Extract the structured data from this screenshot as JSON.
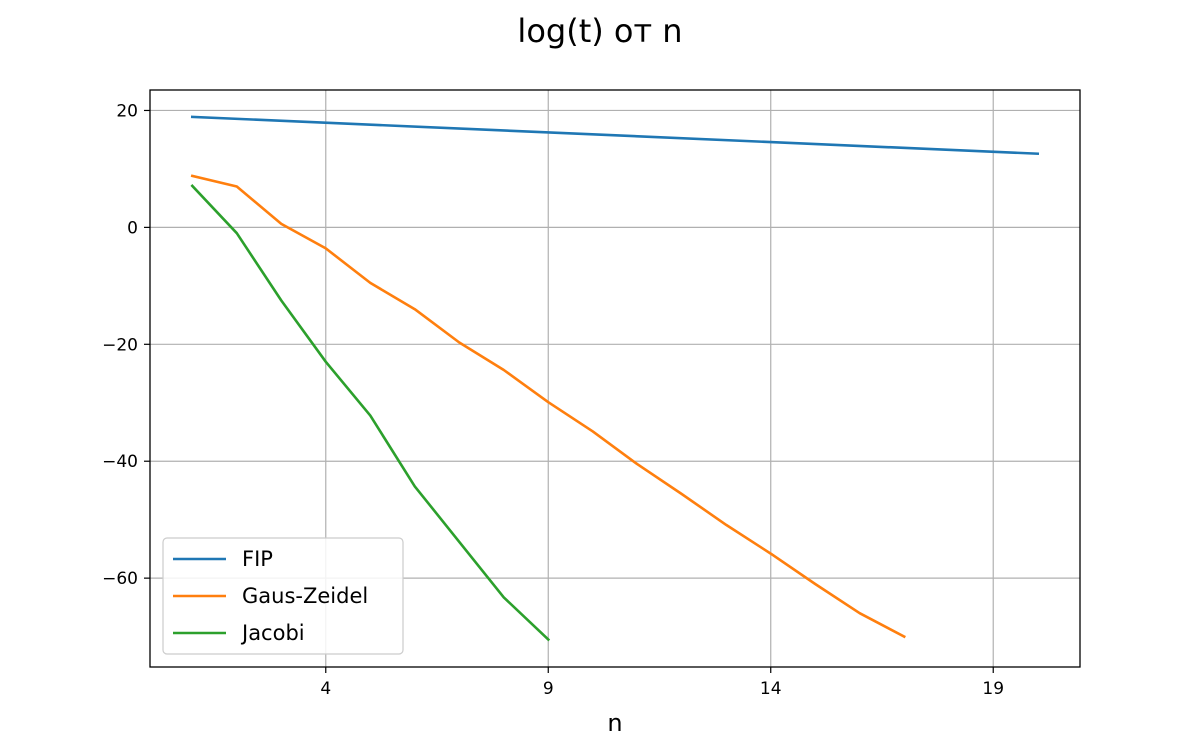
{
  "chart_data": {
    "type": "line",
    "title": "log(t) от n",
    "xlabel": "n",
    "ylabel": "",
    "xlim": [
      0.05,
      20.95
    ],
    "ylim": [
      -75.2,
      23.5
    ],
    "xticks": [
      4,
      9,
      14,
      19
    ],
    "yticks": [
      20,
      0,
      -20,
      -40,
      -60
    ],
    "grid": true,
    "legend_position": "lower-left",
    "series": [
      {
        "name": "FIP",
        "color": "#1f77b4",
        "x": [
          1,
          20
        ],
        "y": [
          18.9,
          12.6
        ]
      },
      {
        "name": "Gaus-Zeidel",
        "color": "#ff7f0e",
        "x": [
          1,
          2,
          3,
          4,
          5,
          6,
          7,
          8,
          9,
          10,
          11,
          12,
          13,
          14,
          15,
          16,
          17
        ],
        "y": [
          8.8,
          7.0,
          0.6,
          -3.6,
          -9.5,
          -14.0,
          -19.7,
          -24.4,
          -29.9,
          -34.9,
          -40.5,
          -45.6,
          -50.9,
          -55.8,
          -61.0,
          -66.0,
          -70.0
        ]
      },
      {
        "name": "Jacobi",
        "color": "#2ca02c",
        "x": [
          1,
          2,
          3,
          4,
          5,
          6,
          7,
          8,
          9
        ],
        "y": [
          7.1,
          -1.0,
          -12.5,
          -23.0,
          -32.2,
          -44.3,
          -53.8,
          -63.3,
          -70.5
        ]
      }
    ]
  }
}
